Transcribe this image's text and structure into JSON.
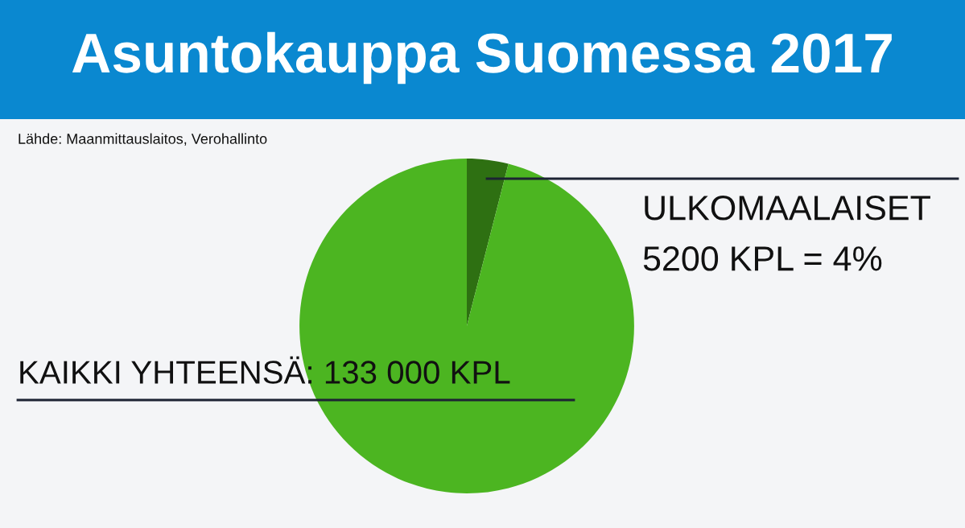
{
  "chart_data": {
    "type": "pie",
    "title": "Asuntokauppa Suomessa 2017",
    "categories": [
      "ULKOMAALAISET",
      null
    ],
    "values": [
      4,
      96
    ],
    "colors": [
      "#2e7012",
      "#4cb521"
    ],
    "value_labels": [
      "5200 KPL = 4%",
      null
    ],
    "annotations": [
      "Lähde: Maanmittauslaitos, Verohallinto",
      "KAIKKI YHTEENSÄ: 133 000 KPL"
    ],
    "legend": false
  }
}
